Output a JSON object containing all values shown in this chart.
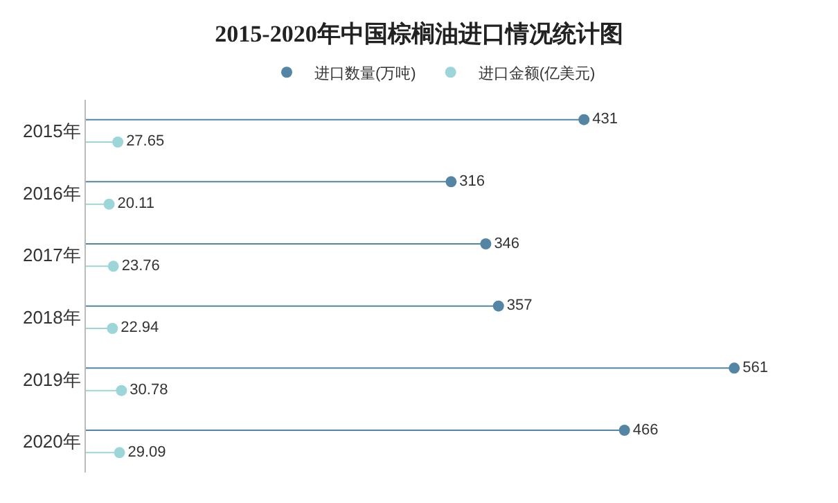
{
  "chart_data": {
    "type": "lollipop",
    "orientation": "horizontal",
    "title": "2015-2020年中国棕榈油进口情况统计图",
    "categories": [
      "2015年",
      "2016年",
      "2017年",
      "2018年",
      "2019年",
      "2020年"
    ],
    "series": [
      {
        "name": "进口数量(万吨)",
        "color": "#5585a5",
        "values": [
          431,
          316,
          346,
          357,
          561,
          466
        ]
      },
      {
        "name": "进口金额(亿美元)",
        "color": "#9dd6d8",
        "values": [
          27.65,
          20.11,
          23.76,
          22.94,
          30.78,
          29.09
        ]
      }
    ],
    "tick_labels": "y",
    "data_labels": true,
    "legend": "top",
    "marker": "circle"
  }
}
